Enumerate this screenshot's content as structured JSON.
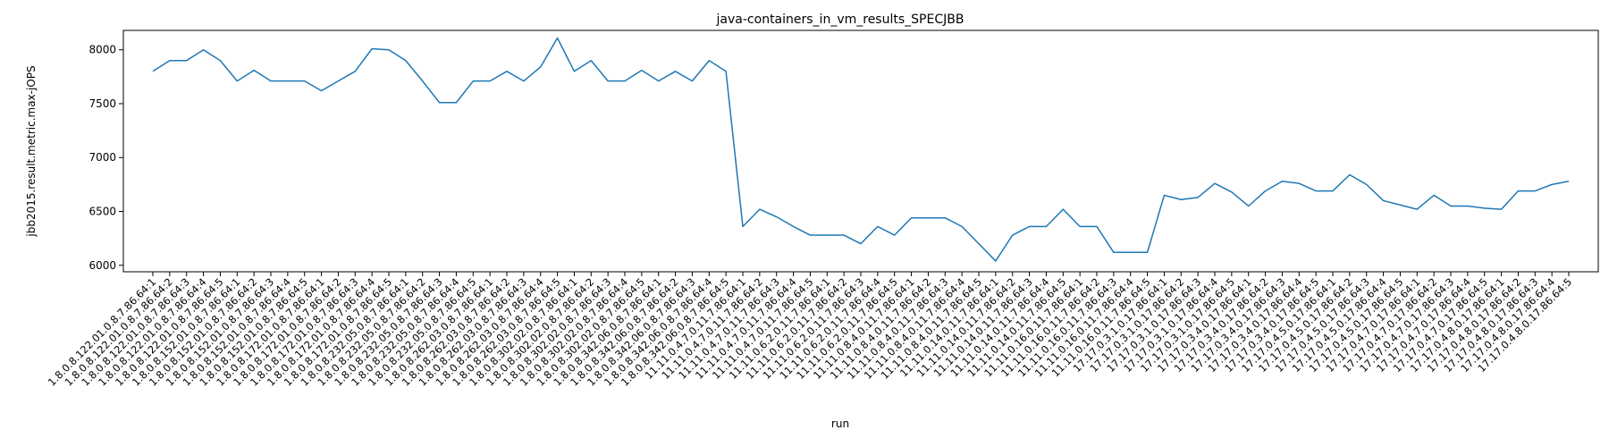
{
  "chart_data": {
    "type": "line",
    "title": "java-containers_in_vm_results_SPECJBB",
    "xlabel": "run",
    "ylabel": "jbb2015.result.metric.max-jOPS",
    "ylim": [
      5940,
      8180
    ],
    "yticks": [
      6000,
      6500,
      7000,
      7500,
      8000
    ],
    "grid": false,
    "series_color": "#1f77b4",
    "categories": [
      "1.8.0.8.122.01.0.8.7.86.64:1",
      "1.8.0.8.122.01.0.8.7.86.64:2",
      "1.8.0.8.122.01.0.8.7.86.64:3",
      "1.8.0.8.122.01.0.8.7.86.64:4",
      "1.8.0.8.122.01.0.8.7.86.64:5",
      "1.8.0.8.152.01.0.8.7.86.64:1",
      "1.8.0.8.152.01.0.8.7.86.64:2",
      "1.8.0.8.152.01.0.8.7.86.64:3",
      "1.8.0.8.152.01.0.8.7.86.64:4",
      "1.8.0.8.152.01.0.8.7.86.64:5",
      "1.8.0.8.172.01.0.8.7.86.64:1",
      "1.8.0.8.172.01.0.8.7.86.64:2",
      "1.8.0.8.172.01.0.8.7.86.64:3",
      "1.8.0.8.172.01.0.8.7.86.64:4",
      "1.8.0.8.172.01.0.8.7.86.64:5",
      "1.8.0.8.232.05.0.8.7.86.64:1",
      "1.8.0.8.232.05.0.8.7.86.64:2",
      "1.8.0.8.232.05.0.8.7.86.64:3",
      "1.8.0.8.232.05.0.8.7.86.64:4",
      "1.8.0.8.232.05.0.8.7.86.64:5",
      "1.8.0.8.262.03.0.8.7.86.64:1",
      "1.8.0.8.262.03.0.8.7.86.64:2",
      "1.8.0.8.262.03.0.8.7.86.64:3",
      "1.8.0.8.262.03.0.8.7.86.64:4",
      "1.8.0.8.262.03.0.8.7.86.64:5",
      "1.8.0.8.302.02.0.8.7.86.64:1",
      "1.8.0.8.302.02.0.8.7.86.64:2",
      "1.8.0.8.302.02.0.8.7.86.64:3",
      "1.8.0.8.302.02.0.8.7.86.64:4",
      "1.8.0.8.302.02.0.8.7.86.64:5",
      "1.8.0.8.342.06.0.8.7.86.64:1",
      "1.8.0.8.342.06.0.8.7.86.64:2",
      "1.8.0.8.342.06.0.8.7.86.64:3",
      "1.8.0.8.342.06.0.8.7.86.64:4",
      "1.8.0.8.342.06.0.8.7.86.64:5",
      "11.11.0.4.7.0.11.7.86.64:1",
      "11.11.0.4.7.0.11.7.86.64:2",
      "11.11.0.4.7.0.11.7.86.64:3",
      "11.11.0.4.7.0.11.7.86.64:4",
      "11.11.0.4.7.0.11.7.86.64:5",
      "11.11.0.6.2.0.11.7.86.64:1",
      "11.11.0.6.2.0.11.7.86.64:2",
      "11.11.0.6.2.0.11.7.86.64:3",
      "11.11.0.6.2.0.11.7.86.64:4",
      "11.11.0.6.2.0.11.7.86.64:5",
      "11.11.0.8.4.0.11.7.86.64:1",
      "11.11.0.8.4.0.11.7.86.64:2",
      "11.11.0.8.4.0.11.7.86.64:3",
      "11.11.0.8.4.0.11.7.86.64:4",
      "11.11.0.8.4.0.11.7.86.64:5",
      "11.11.0.14.0.11.7.86.64:1",
      "11.11.0.14.0.11.7.86.64:2",
      "11.11.0.14.0.11.7.86.64:3",
      "11.11.0.14.0.11.7.86.64:4",
      "11.11.0.14.0.11.7.86.64:5",
      "11.11.0.16.0.11.7.86.64:1",
      "11.11.0.16.0.11.7.86.64:2",
      "11.11.0.16.0.11.7.86.64:3",
      "11.11.0.16.0.11.7.86.64:4",
      "11.11.0.16.0.11.7.86.64:5",
      "17.17.0.3.1.0.17.86.64:1",
      "17.17.0.3.1.0.17.86.64:2",
      "17.17.0.3.1.0.17.86.64:3",
      "17.17.0.3.1.0.17.86.64:4",
      "17.17.0.3.1.0.17.86.64:5",
      "17.17.0.3.4.0.17.86.64:1",
      "17.17.0.3.4.0.17.86.64:2",
      "17.17.0.3.4.0.17.86.64:3",
      "17.17.0.3.4.0.17.86.64:4",
      "17.17.0.3.4.0.17.86.64:5",
      "17.17.0.4.5.0.17.86.64:1",
      "17.17.0.4.5.0.17.86.64:2",
      "17.17.0.4.5.0.17.86.64:3",
      "17.17.0.4.5.0.17.86.64:4",
      "17.17.0.4.5.0.17.86.64:5",
      "17.17.0.4.7.0.17.86.64:1",
      "17.17.0.4.7.0.17.86.64:2",
      "17.17.0.4.7.0.17.86.64:3",
      "17.17.0.4.7.0.17.86.64:4",
      "17.17.0.4.7.0.17.86.64:5",
      "17.17.0.4.8.0.17.86.64:1",
      "17.17.0.4.8.0.17.86.64:2",
      "17.17.0.4.8.0.17.86.64:3",
      "17.17.0.4.8.0.17.86.64:4",
      "17.17.0.4.8.0.17.86.64:5"
    ],
    "values": [
      7800,
      7900,
      7900,
      8000,
      7900,
      7710,
      7810,
      7710,
      7710,
      7710,
      7620,
      7710,
      7800,
      8010,
      8000,
      7900,
      7710,
      7510,
      7510,
      7710,
      7710,
      7800,
      7710,
      7840,
      8110,
      7800,
      7900,
      7710,
      7710,
      7810,
      7710,
      7800,
      7710,
      7900,
      7800,
      6360,
      6520,
      6450,
      6360,
      6280,
      6280,
      6280,
      6200,
      6360,
      6280,
      6440,
      6440,
      6440,
      6360,
      6200,
      6040,
      6280,
      6360,
      6360,
      6520,
      6360,
      6360,
      6120,
      6120,
      6120,
      6650,
      6610,
      6630,
      6760,
      6680,
      6550,
      6690,
      6780,
      6760,
      6690,
      6690,
      6840,
      6750,
      6600,
      6560,
      6520,
      6650,
      6550,
      6550,
      6530,
      6520,
      6690,
      6690,
      6750,
      6780
    ]
  }
}
